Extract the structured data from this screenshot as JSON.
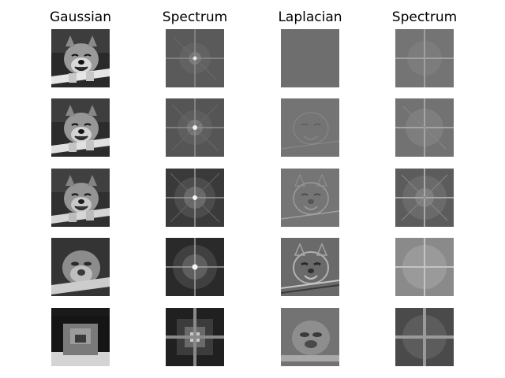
{
  "columns": [
    {
      "title": "Gaussian"
    },
    {
      "title": "Spectrum"
    },
    {
      "title": "Laplacian"
    },
    {
      "title": "Spectrum"
    }
  ],
  "levels": 5,
  "panel_kinds": [
    "gaussian-image",
    "spectrum-image",
    "laplacian-image",
    "spectrum-image"
  ]
}
